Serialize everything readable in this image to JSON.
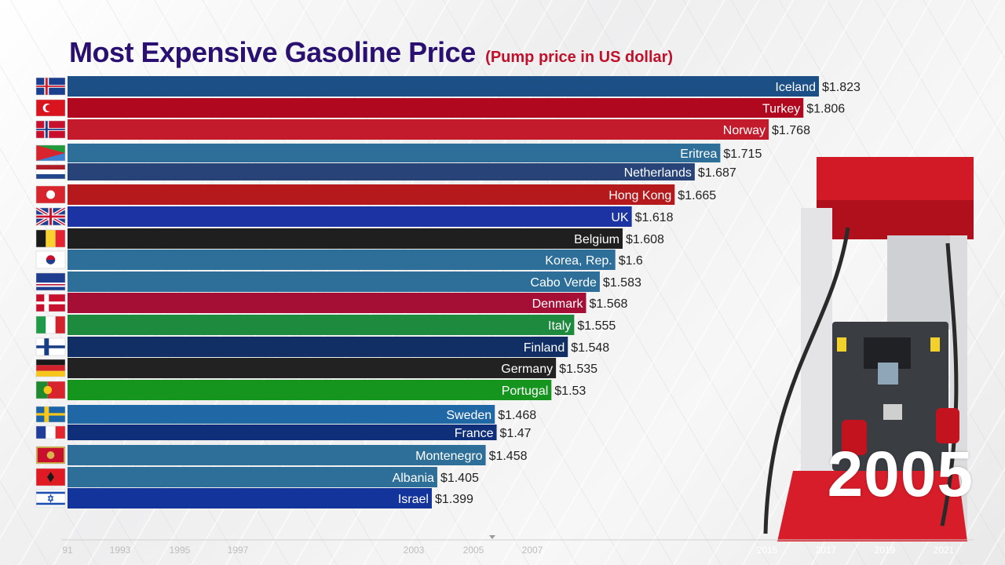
{
  "chart_data": {
    "type": "bar",
    "title": "Most Expensive Gasoline Price",
    "subtitle": "(Pump price in US dollar)",
    "year": "2005",
    "value_prefix": "$",
    "bars": [
      {
        "country": "Iceland",
        "value": 1.823,
        "color": "#1b4f86",
        "flag": "iceland-flag"
      },
      {
        "country": "Turkey",
        "value": 1.806,
        "color": "#b0091f",
        "flag": "turkey-flag"
      },
      {
        "country": "Norway",
        "value": 1.768,
        "color": "#c31a2c",
        "flag": "norway-flag"
      },
      {
        "country": "Eritrea",
        "value": 1.715,
        "color": "#2e6f99",
        "flag": "eritrea-flag"
      },
      {
        "country": "Netherlands",
        "value": 1.687,
        "color": "#274377",
        "flag": "netherlands-flag"
      },
      {
        "country": "Hong Kong",
        "value": 1.665,
        "color": "#b5191c",
        "flag": "hong-kong-flag"
      },
      {
        "country": "UK",
        "value": 1.618,
        "color": "#1c34a3",
        "flag": "uk-flag"
      },
      {
        "country": "Belgium",
        "value": 1.608,
        "color": "#1f1f1f",
        "flag": "belgium-flag"
      },
      {
        "country": "Korea, Rep.",
        "value": 1.6,
        "color": "#2e6f99",
        "flag": "korea-flag"
      },
      {
        "country": "Cabo Verde",
        "value": 1.583,
        "color": "#2e6f99",
        "flag": "cabo-verde-flag"
      },
      {
        "country": "Denmark",
        "value": 1.568,
        "color": "#a50f36",
        "flag": "denmark-flag"
      },
      {
        "country": "Italy",
        "value": 1.555,
        "color": "#1e8a3e",
        "flag": "italy-flag"
      },
      {
        "country": "Finland",
        "value": 1.548,
        "color": "#112f64",
        "flag": "finland-flag"
      },
      {
        "country": "Germany",
        "value": 1.535,
        "color": "#222222",
        "flag": "germany-flag"
      },
      {
        "country": "Portugal",
        "value": 1.53,
        "color": "#16951e",
        "flag": "portugal-flag"
      },
      {
        "country": "Sweden",
        "value": 1.468,
        "color": "#2067a6",
        "flag": "sweden-flag"
      },
      {
        "country": "France",
        "value": 1.47,
        "color": "#0f2f7a",
        "flag": "france-flag"
      },
      {
        "country": "Montenegro",
        "value": 1.458,
        "color": "#2e6f99",
        "flag": "montenegro-flag"
      },
      {
        "country": "Albania",
        "value": 1.405,
        "color": "#2e6f99",
        "flag": "albania-flag"
      },
      {
        "country": "Israel",
        "value": 1.399,
        "color": "#13349a",
        "flag": "israel-flag"
      }
    ],
    "timeline_ticks": [
      "91",
      "1993",
      "1995",
      "1997",
      "2003",
      "2005",
      "2007",
      "2015",
      "2017",
      "2019",
      "2021"
    ]
  }
}
